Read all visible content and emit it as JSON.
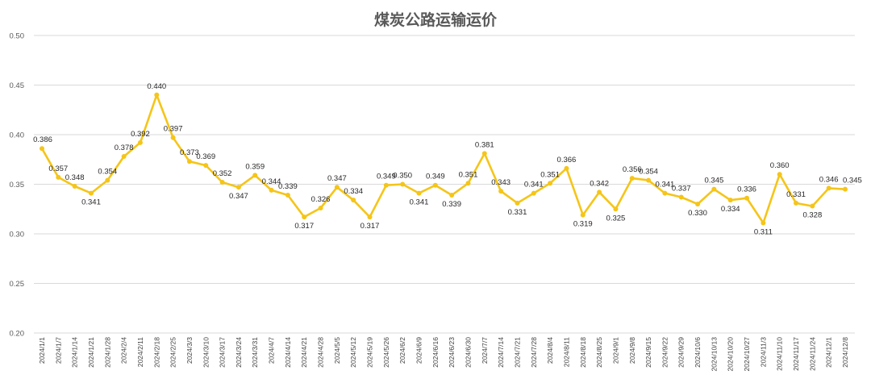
{
  "chart_data": {
    "type": "line",
    "title": "煤炭公路运输运价",
    "xlabel": "",
    "ylabel": "",
    "ylim": [
      0.2,
      0.5
    ],
    "yticks": [
      "0.50",
      "0.45",
      "0.40",
      "0.35",
      "0.30",
      "0.25",
      "0.20"
    ],
    "grid": true,
    "legend": "none",
    "series_color": "#f5c518",
    "categories": [
      "2024/1/1",
      "2024/1/7",
      "2024/1/14",
      "2024/1/21",
      "2024/1/28",
      "2024/2/4",
      "2024/2/11",
      "2024/2/18",
      "2024/2/25",
      "2024/3/3",
      "2024/3/10",
      "2024/3/17",
      "2024/3/24",
      "2024/3/31",
      "2024/4/7",
      "2024/4/14",
      "2024/4/21",
      "2024/4/28",
      "2024/5/5",
      "2024/5/12",
      "2024/5/19",
      "2024/5/26",
      "2024/6/2",
      "2024/6/9",
      "2024/6/16",
      "2024/6/23",
      "2024/6/30",
      "2024/7/7",
      "2024/7/14",
      "2024/7/21",
      "2024/7/28",
      "2024/8/4",
      "2024/8/11",
      "2024/8/18",
      "2024/8/25",
      "2024/9/1",
      "2024/9/8",
      "2024/9/15",
      "2024/9/22",
      "2024/9/29",
      "2024/10/6",
      "2024/10/13",
      "2024/10/20",
      "2024/10/27",
      "2024/11/3",
      "2024/11/10",
      "2024/11/17",
      "2024/11/24",
      "2024/12/1",
      "2024/12/8"
    ],
    "values": [
      0.386,
      0.357,
      0.348,
      0.341,
      0.354,
      0.378,
      0.392,
      0.44,
      0.397,
      0.373,
      0.369,
      0.352,
      0.347,
      0.359,
      0.344,
      0.339,
      0.317,
      0.326,
      0.347,
      0.334,
      0.317,
      0.349,
      0.35,
      0.341,
      0.349,
      0.339,
      0.351,
      0.381,
      0.343,
      0.331,
      0.341,
      0.351,
      0.366,
      0.319,
      0.342,
      0.325,
      0.356,
      0.354,
      0.341,
      0.337,
      0.33,
      0.345,
      0.334,
      0.336,
      0.311,
      0.36,
      0.331,
      0.328,
      0.346,
      0.345
    ],
    "data_labels": [
      "0.386",
      "0.357",
      "0.348",
      "0.341",
      "0.354",
      "0.378",
      "0.392",
      "0.440",
      "0.397",
      "0.373",
      "0.369",
      "0.352",
      "0.347",
      "0.359",
      "0.344",
      "0.339",
      "0.317",
      "0.326",
      "0.347",
      "0.334",
      "0.317",
      "0.349",
      "0.350",
      "0.341",
      "0.349",
      "0.339",
      "0.351",
      "0.381",
      "0.343",
      "0.331",
      "0.341",
      "0.351",
      "0.366",
      "0.319",
      "0.342",
      "0.325",
      "0.356",
      "0.354",
      "0.341",
      "0.337",
      "0.330",
      "0.345",
      "0.334",
      "0.336",
      "0.311",
      "0.360",
      "0.331",
      "0.328",
      "0.346",
      "0.345"
    ]
  }
}
